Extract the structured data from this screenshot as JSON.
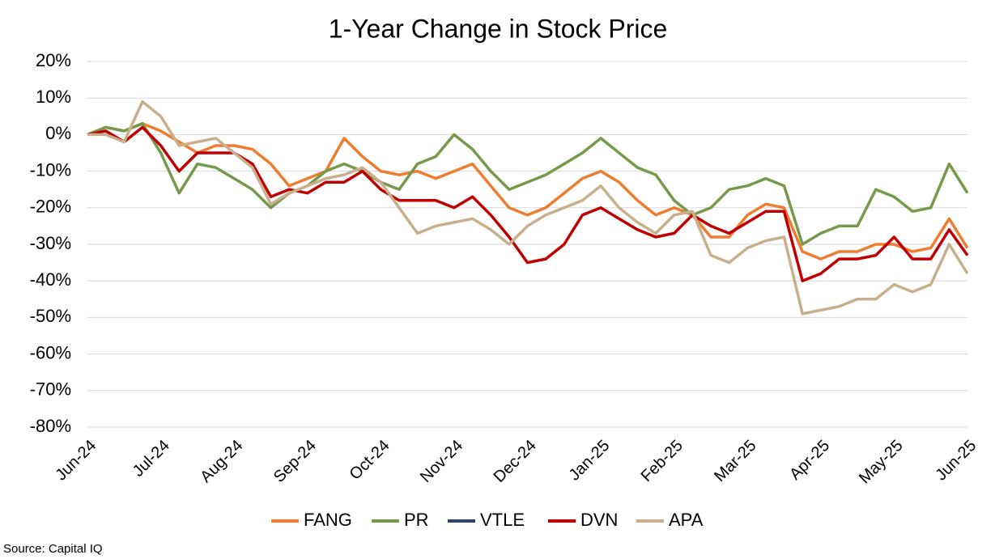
{
  "chart_data": {
    "type": "line",
    "title": "1-Year Change in Stock Price",
    "source": "Source: Capital IQ",
    "categories": [
      "Jun-24",
      null,
      null,
      null,
      "Jul-24",
      null,
      null,
      null,
      "Aug-24",
      null,
      null,
      null,
      "Sep-24",
      null,
      null,
      null,
      "Oct-24",
      null,
      null,
      null,
      "Nov-24",
      null,
      null,
      null,
      "Dec-24",
      null,
      null,
      null,
      "Jan-25",
      null,
      null,
      null,
      "Feb-25",
      null,
      null,
      null,
      "Mar-25",
      null,
      null,
      null,
      "Apr-25",
      null,
      null,
      null,
      "May-25",
      null,
      null,
      null,
      "Jun-25"
    ],
    "series": [
      {
        "name": "FANG",
        "color": "#ed7d31",
        "values": [
          0,
          2,
          1,
          3,
          1,
          -2,
          -5,
          -3,
          -3,
          -4,
          -8,
          -14,
          -12,
          -10,
          -1,
          -6,
          -10,
          -11,
          -10,
          -12,
          -10,
          -8,
          -14,
          -20,
          -22,
          -20,
          -16,
          -12,
          -10,
          -13,
          -18,
          -22,
          -20,
          -22,
          -28,
          -28,
          -22,
          -19,
          -20,
          -32,
          -34,
          -32,
          -32,
          -30,
          -30,
          -32,
          -31,
          -23,
          -31
        ]
      },
      {
        "name": "PR",
        "color": "#77994b",
        "values": [
          0,
          2,
          1,
          3,
          -5,
          -16,
          -8,
          -9,
          -12,
          -15,
          -20,
          -16,
          -14,
          -10,
          -8,
          -10,
          -13,
          -15,
          -8,
          -6,
          0,
          -4,
          -10,
          -15,
          -13,
          -11,
          -8,
          -5,
          -1,
          -5,
          -9,
          -11,
          -18,
          -22,
          -20,
          -15,
          -14,
          -12,
          -14,
          -30,
          -27,
          -25,
          -25,
          -15,
          -17,
          -21,
          -20,
          -8,
          -16
        ]
      },
      {
        "name": "VTLE",
        "color": "#2c4466",
        "values": [
          null,
          null,
          null,
          null,
          null,
          null,
          null,
          null,
          null,
          null,
          null,
          null,
          null,
          null,
          null,
          null,
          null,
          null,
          null,
          null,
          null,
          null,
          null,
          null,
          null,
          null,
          null,
          null,
          null,
          null,
          null,
          null,
          null,
          null,
          null,
          null,
          null,
          null,
          null,
          null,
          null,
          null,
          null,
          null,
          null,
          null,
          null,
          null,
          null
        ]
      },
      {
        "name": "DVN",
        "color": "#c00000",
        "values": [
          0,
          1,
          -2,
          2,
          -3,
          -10,
          -5,
          -5,
          -5,
          -8,
          -17,
          -15,
          -16,
          -13,
          -13,
          -10,
          -15,
          -18,
          -18,
          -18,
          -20,
          -17,
          -22,
          -28,
          -35,
          -34,
          -30,
          -22,
          -20,
          -23,
          -26,
          -28,
          -27,
          -22,
          -25,
          -27,
          -24,
          -21,
          -21,
          -40,
          -38,
          -34,
          -34,
          -33,
          -28,
          -34,
          -34,
          -26,
          -33
        ]
      },
      {
        "name": "APA",
        "color": "#c8b08c",
        "values": [
          0,
          0,
          -2,
          9,
          5,
          -3,
          -2,
          -1,
          -5,
          -9,
          -19,
          -16,
          -14,
          -12,
          -11,
          -9,
          -13,
          -20,
          -27,
          -25,
          -24,
          -23,
          -26,
          -30,
          -25,
          -22,
          -20,
          -18,
          -14,
          -20,
          -24,
          -27,
          -22,
          -21,
          -33,
          -35,
          -31,
          -29,
          -28,
          -49,
          -48,
          -47,
          -45,
          -45,
          -41,
          -43,
          -41,
          -30,
          -38
        ]
      }
    ],
    "ylim": [
      -80,
      20
    ],
    "yticks": [
      {
        "value": -80,
        "label": "-80%"
      },
      {
        "value": -70,
        "label": "-70%"
      },
      {
        "value": -60,
        "label": "-60%"
      },
      {
        "value": -50,
        "label": "-50%"
      },
      {
        "value": -40,
        "label": "-40%"
      },
      {
        "value": -30,
        "label": "-30%"
      },
      {
        "value": -20,
        "label": "-20%"
      },
      {
        "value": -10,
        "label": "-10%"
      },
      {
        "value": 0,
        "label": "0%"
      },
      {
        "value": 10,
        "label": "10%"
      },
      {
        "value": 20,
        "label": "20%"
      }
    ],
    "grid": true,
    "legend": "bottom"
  }
}
